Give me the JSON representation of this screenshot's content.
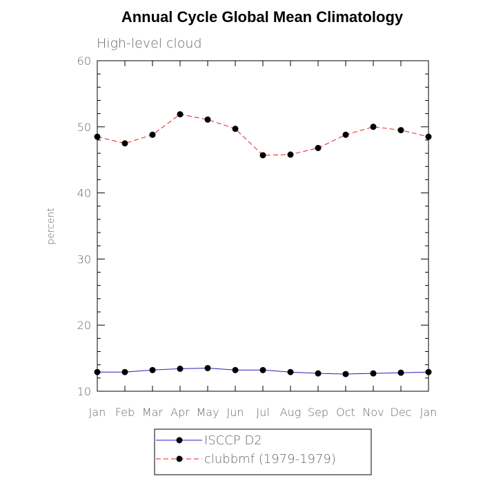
{
  "chart_data": {
    "type": "line",
    "title": "Annual Cycle Global Mean Climatology",
    "subtitle": "High-level cloud",
    "xlabel": "",
    "ylabel": "percent",
    "ylim": [
      10,
      60
    ],
    "yticks": [
      "10",
      "20",
      "30",
      "40",
      "50",
      "60"
    ],
    "categories": [
      "Jan",
      "Feb",
      "Mar",
      "Apr",
      "May",
      "Jun",
      "Jul",
      "Aug",
      "Sep",
      "Oct",
      "Nov",
      "Dec",
      "Jan"
    ],
    "grid": false,
    "legend_position": "bottom",
    "series": [
      {
        "name": "ISCCP D2",
        "color": "#2020c0",
        "line_style": "solid",
        "values": [
          12.9,
          12.9,
          13.2,
          13.4,
          13.5,
          13.2,
          13.2,
          12.9,
          12.7,
          12.6,
          12.7,
          12.8,
          12.9
        ]
      },
      {
        "name": "clubbmf (1979-1979)",
        "color": "#e02020",
        "line_style": "dashed",
        "values": [
          48.5,
          47.5,
          48.8,
          51.9,
          51.1,
          49.7,
          45.7,
          45.8,
          46.8,
          48.8,
          50.0,
          49.5,
          48.5
        ]
      }
    ]
  }
}
